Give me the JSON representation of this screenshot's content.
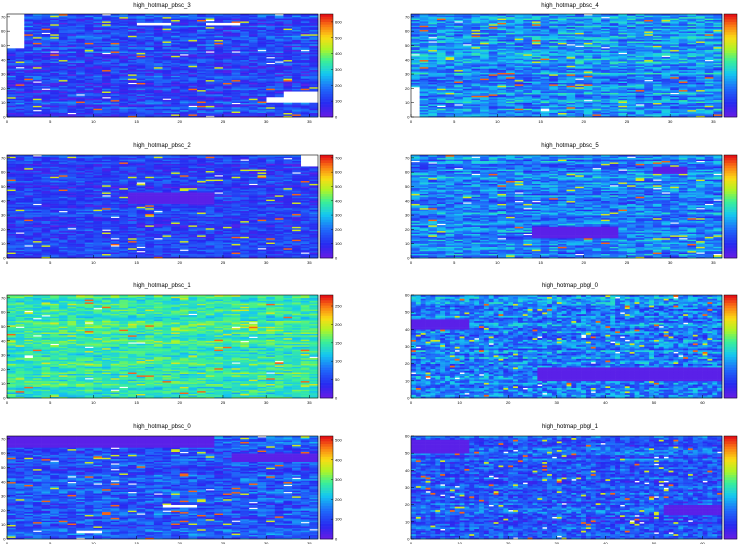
{
  "chart_data": [
    {
      "type": "heatmap",
      "title": "high_hotmap_pbsc_3",
      "xlim": [
        0,
        36
      ],
      "ylim": [
        0,
        72
      ],
      "xticks": [
        0,
        5,
        10,
        15,
        20,
        25,
        30,
        35
      ],
      "yticks": [
        0,
        10,
        20,
        30,
        40,
        50,
        60,
        70
      ],
      "colorbar_max": 650,
      "colorbar_ticks": [
        0,
        100,
        200,
        300,
        400,
        500,
        600
      ],
      "base_level": 0.18,
      "variation": 0.12,
      "regions": [
        {
          "x": [
            32,
            36
          ],
          "y": [
            10,
            18
          ],
          "level": "empty"
        },
        {
          "x": [
            30,
            32
          ],
          "y": [
            10,
            14
          ],
          "level": "empty"
        },
        {
          "x": [
            15,
            19
          ],
          "y": [
            64,
            66
          ],
          "level": "empty"
        },
        {
          "x": [
            23,
            27
          ],
          "y": [
            64,
            66
          ],
          "level": "empty"
        },
        {
          "x": [
            0,
            2
          ],
          "y": [
            48,
            72
          ],
          "level": "empty"
        }
      ]
    },
    {
      "type": "heatmap",
      "title": "high_hotmap_pbsc_4",
      "xlim": [
        0,
        36
      ],
      "ylim": [
        0,
        72
      ],
      "xticks": [
        0,
        5,
        10,
        15,
        20,
        25,
        30,
        35
      ],
      "yticks": [
        0,
        10,
        20,
        30,
        40,
        50,
        60,
        70
      ],
      "colorbar_max": 0,
      "colorbar_ticks": [],
      "base_level": 0.33,
      "variation": 0.14,
      "regions": [
        {
          "x": [
            0,
            1
          ],
          "y": [
            0,
            20
          ],
          "level": "empty"
        }
      ]
    },
    {
      "type": "heatmap",
      "title": "high_hotmap_pbsc_2",
      "xlim": [
        0,
        36
      ],
      "ylim": [
        0,
        72
      ],
      "xticks": [
        0,
        5,
        10,
        15,
        20,
        25,
        30,
        35
      ],
      "yticks": [
        0,
        10,
        20,
        30,
        40,
        50,
        60,
        70
      ],
      "colorbar_max": 720,
      "colorbar_ticks": [
        0,
        100,
        200,
        300,
        400,
        500,
        600,
        700
      ],
      "base_level": 0.16,
      "variation": 0.1,
      "regions": [
        {
          "x": [
            14,
            24
          ],
          "y": [
            38,
            46
          ],
          "level": "min"
        },
        {
          "x": [
            34,
            36
          ],
          "y": [
            64,
            72
          ],
          "level": "empty"
        }
      ]
    },
    {
      "type": "heatmap",
      "title": "high_hotmap_pbsc_5",
      "xlim": [
        0,
        36
      ],
      "ylim": [
        0,
        72
      ],
      "xticks": [
        0,
        5,
        10,
        15,
        20,
        25,
        30,
        35
      ],
      "yticks": [
        0,
        10,
        20,
        30,
        40,
        50,
        60,
        70
      ],
      "colorbar_max": 0,
      "colorbar_ticks": [],
      "base_level": 0.3,
      "variation": 0.13,
      "regions": [
        {
          "x": [
            14,
            24
          ],
          "y": [
            14,
            22
          ],
          "level": "min"
        },
        {
          "x": [
            28,
            32
          ],
          "y": [
            59,
            64
          ],
          "level": "min"
        }
      ]
    },
    {
      "type": "heatmap",
      "title": "high_hotmap_pbsc_1",
      "xlim": [
        0,
        36
      ],
      "ylim": [
        0,
        72
      ],
      "xticks": [
        0,
        5,
        10,
        15,
        20,
        25,
        30,
        35
      ],
      "yticks": [
        0,
        10,
        20,
        30,
        40,
        50,
        60,
        70
      ],
      "colorbar_max": 280,
      "colorbar_ticks": [
        0,
        50,
        100,
        150,
        200,
        250
      ],
      "base_level": 0.52,
      "variation": 0.1,
      "regions": []
    },
    {
      "type": "heatmap",
      "title": "high_hotmap_pbgl_0",
      "xlim": [
        0,
        64
      ],
      "ylim": [
        0,
        60
      ],
      "xticks": [
        0,
        10,
        20,
        30,
        40,
        50,
        60
      ],
      "yticks": [
        0,
        10,
        20,
        30,
        40,
        50,
        60
      ],
      "colorbar_max": 0,
      "colorbar_ticks": [],
      "base_level": 0.3,
      "variation": 0.14,
      "regions": [
        {
          "x": [
            0,
            12
          ],
          "y": [
            40,
            46
          ],
          "level": "min"
        },
        {
          "x": [
            26,
            64
          ],
          "y": [
            10,
            18
          ],
          "level": "min"
        }
      ]
    },
    {
      "type": "heatmap",
      "title": "high_hotmap_pbsc_0",
      "xlim": [
        0,
        36
      ],
      "ylim": [
        0,
        72
      ],
      "xticks": [
        0,
        5,
        10,
        15,
        20,
        25,
        30,
        35
      ],
      "yticks": [
        0,
        10,
        20,
        30,
        40,
        50,
        60,
        70
      ],
      "colorbar_max": 520,
      "colorbar_ticks": [
        0,
        100,
        200,
        300,
        400,
        500
      ],
      "base_level": 0.22,
      "variation": 0.12,
      "regions": [
        {
          "x": [
            0,
            24
          ],
          "y": [
            64,
            72
          ],
          "level": "min"
        },
        {
          "x": [
            26,
            36
          ],
          "y": [
            54,
            60
          ],
          "level": "min"
        },
        {
          "x": [
            18,
            22
          ],
          "y": [
            22,
            24
          ],
          "level": "empty"
        },
        {
          "x": [
            8,
            11
          ],
          "y": [
            4,
            6
          ],
          "level": "empty"
        }
      ]
    },
    {
      "type": "heatmap",
      "title": "high_hotmap_pbgl_1",
      "xlim": [
        0,
        64
      ],
      "ylim": [
        0,
        60
      ],
      "xticks": [
        0,
        10,
        20,
        30,
        40,
        50,
        60
      ],
      "yticks": [
        0,
        10,
        20,
        30,
        40,
        50,
        60
      ],
      "colorbar_max": 0,
      "colorbar_ticks": [],
      "base_level": 0.22,
      "variation": 0.12,
      "regions": [
        {
          "x": [
            0,
            12
          ],
          "y": [
            50,
            58
          ],
          "level": "min"
        },
        {
          "x": [
            52,
            64
          ],
          "y": [
            14,
            20
          ],
          "level": "min"
        }
      ]
    }
  ]
}
